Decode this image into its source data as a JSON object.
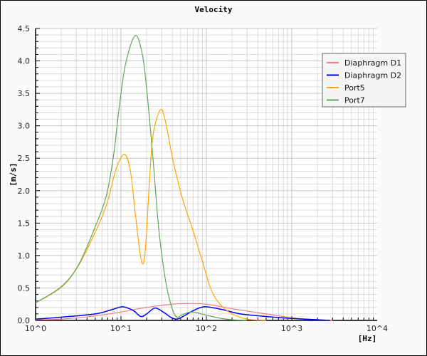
{
  "chart_data": {
    "type": "line",
    "title": "Velocity",
    "xlabel": "[Hz]",
    "ylabel": "[m/s]",
    "xscale": "log",
    "xlim": [
      1,
      10000
    ],
    "ylim": [
      0,
      4.5
    ],
    "x_tick_labels": [
      "10^0",
      "10^1",
      "10^2",
      "10^3",
      "10^4"
    ],
    "y_tick_labels": [
      "0.0",
      "0.5",
      "1.0",
      "1.5",
      "2.0",
      "2.5",
      "3.0",
      "3.5",
      "4.0",
      "4.5"
    ],
    "grid": true,
    "legend_position": "top-right",
    "series": [
      {
        "name": "Diaphragm D1",
        "color": "#f08080",
        "x": [
          1,
          2,
          5,
          10,
          20,
          40,
          60,
          100,
          200,
          500,
          1000,
          1500,
          3000
        ],
        "y": [
          0.01,
          0.02,
          0.07,
          0.13,
          0.2,
          0.25,
          0.26,
          0.25,
          0.18,
          0.1,
          0.04,
          0.02,
          0.0
        ]
      },
      {
        "name": "Diaphragm D2",
        "color": "#0000ff",
        "x": [
          1,
          2,
          5,
          8,
          10.5,
          14,
          17,
          20,
          25,
          32,
          38,
          45,
          55,
          70,
          95,
          150,
          250,
          500,
          1000,
          2000,
          2800
        ],
        "y": [
          0.02,
          0.05,
          0.1,
          0.17,
          0.21,
          0.15,
          0.06,
          0.1,
          0.19,
          0.12,
          0.05,
          0.02,
          0.07,
          0.15,
          0.21,
          0.17,
          0.1,
          0.06,
          0.03,
          0.01,
          0.0
        ]
      },
      {
        "name": "Port5",
        "color": "#ffa500",
        "x": [
          1,
          2,
          3.16,
          4.95,
          6.8,
          8.8,
          11,
          12.9,
          14.7,
          16.8,
          18.3,
          19.6,
          21.5,
          23.7,
          28.7,
          32.6,
          40.9,
          52.7,
          68,
          88,
          114,
          147,
          200,
          300,
          500
        ],
        "y": [
          0.27,
          0.51,
          0.84,
          1.35,
          1.79,
          2.34,
          2.56,
          2.3,
          1.65,
          1.02,
          0.88,
          1.21,
          2.12,
          2.85,
          3.24,
          3.11,
          2.45,
          1.87,
          1.43,
          0.95,
          0.47,
          0.24,
          0.1,
          0.02,
          0.0
        ]
      },
      {
        "name": "Port7",
        "color": "#5fa55f",
        "x": [
          1,
          2,
          3.16,
          4.95,
          6.8,
          8.3,
          9.4,
          11.3,
          14.7,
          17.8,
          20.2,
          23.7,
          27.8,
          33.6,
          39.6,
          45,
          52.7,
          68,
          100,
          150,
          200,
          300
        ],
        "y": [
          0.27,
          0.52,
          0.85,
          1.43,
          1.94,
          2.6,
          3.22,
          3.95,
          4.39,
          4.1,
          3.51,
          2.49,
          1.39,
          0.58,
          0.19,
          0.05,
          0.09,
          0.13,
          0.08,
          0.03,
          0.01,
          0.0
        ]
      }
    ]
  }
}
